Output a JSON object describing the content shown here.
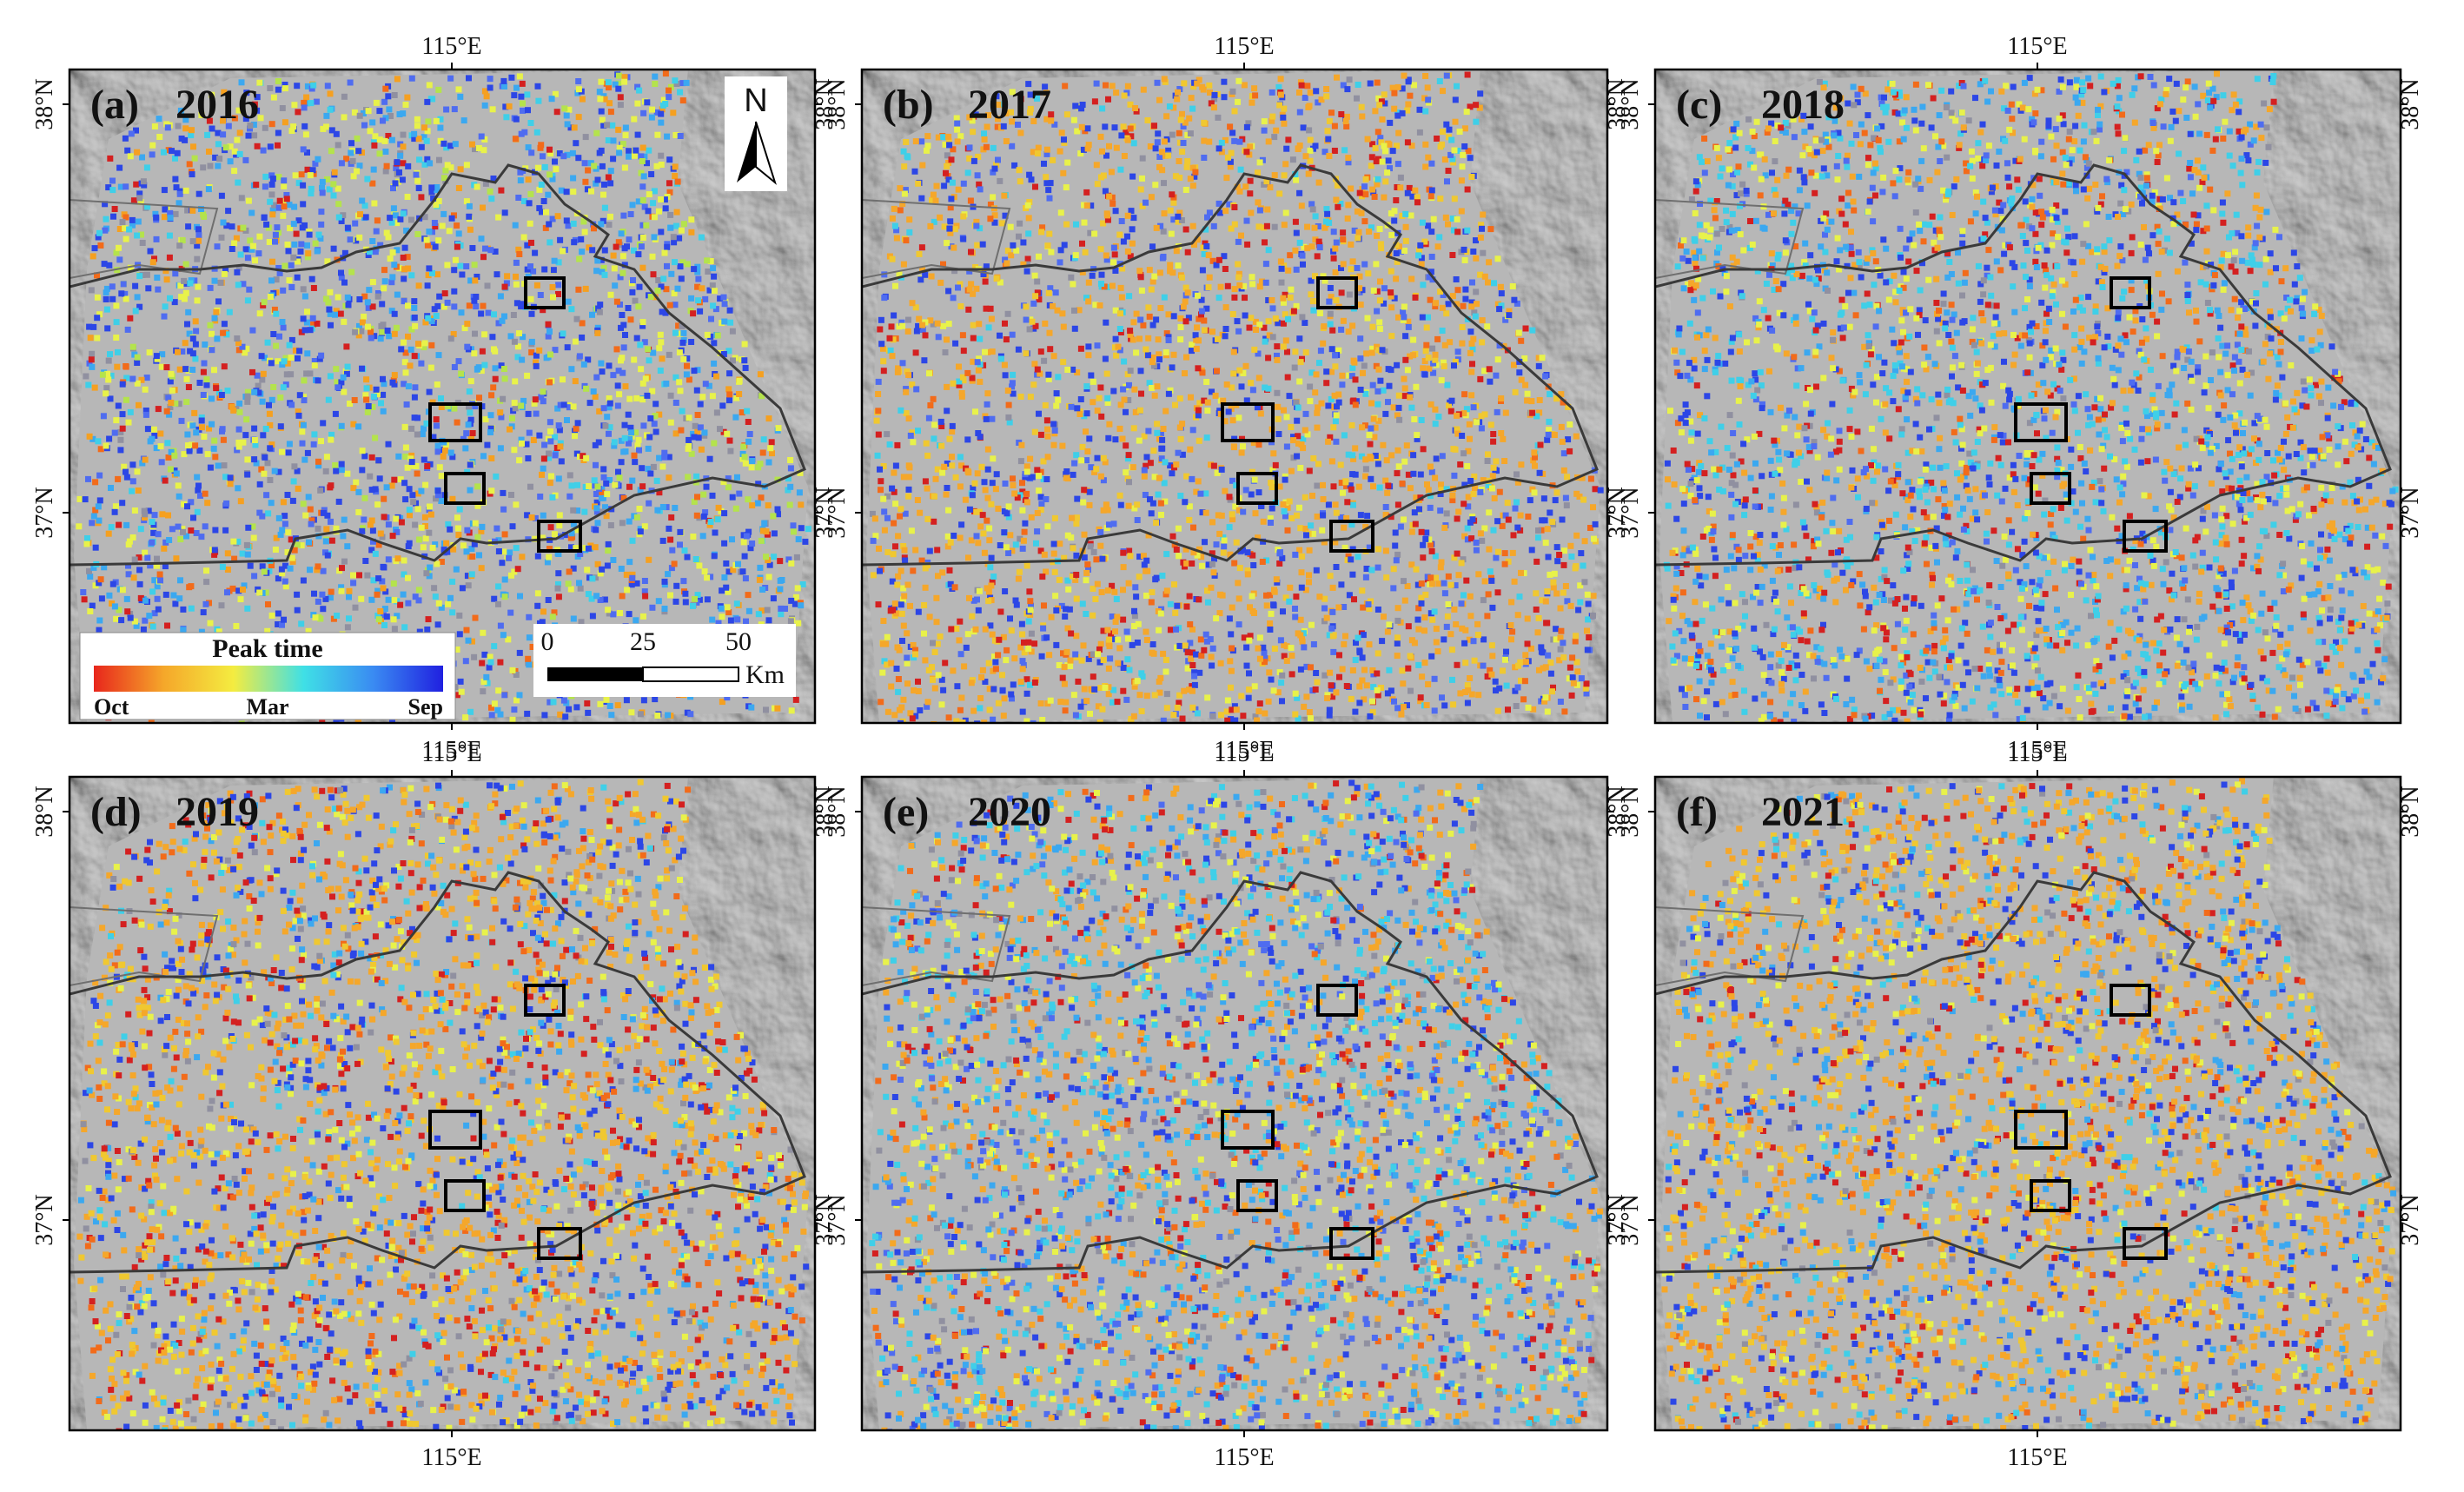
{
  "figure": {
    "panels": [
      {
        "label": "(a)",
        "year": "2016",
        "palette": [
          [
            "#e8f24a",
            0.16
          ],
          [
            "#b4e34c",
            0.05
          ],
          [
            "#3ba8f0",
            0.14
          ],
          [
            "#2c46e6",
            0.22
          ],
          [
            "#4f6cf0",
            0.12
          ],
          [
            "#3fcfe8",
            0.08
          ],
          [
            "#f5a020",
            0.08
          ],
          [
            "#f26b1a",
            0.05
          ],
          [
            "#d42020",
            0.04
          ],
          [
            "#9090a0",
            0.06
          ]
        ]
      },
      {
        "label": "(b)",
        "year": "2017",
        "palette": [
          [
            "#f5a72a",
            0.3
          ],
          [
            "#f0c830",
            0.14
          ],
          [
            "#e8f24a",
            0.08
          ],
          [
            "#2c46e6",
            0.16
          ],
          [
            "#4f6cf0",
            0.1
          ],
          [
            "#3fcfe8",
            0.06
          ],
          [
            "#d42020",
            0.08
          ],
          [
            "#f26b1a",
            0.04
          ],
          [
            "#9090a0",
            0.04
          ]
        ]
      },
      {
        "label": "(c)",
        "year": "2018",
        "palette": [
          [
            "#3fcfe8",
            0.18
          ],
          [
            "#3ba8f0",
            0.14
          ],
          [
            "#e8f24a",
            0.14
          ],
          [
            "#f5a72a",
            0.14
          ],
          [
            "#2c46e6",
            0.14
          ],
          [
            "#4f6cf0",
            0.08
          ],
          [
            "#d42020",
            0.08
          ],
          [
            "#f26b1a",
            0.06
          ],
          [
            "#9090a0",
            0.04
          ]
        ]
      },
      {
        "label": "(d)",
        "year": "2019",
        "palette": [
          [
            "#f5a72a",
            0.26
          ],
          [
            "#f0c830",
            0.18
          ],
          [
            "#e8f24a",
            0.1
          ],
          [
            "#2c46e6",
            0.14
          ],
          [
            "#d42020",
            0.1
          ],
          [
            "#f26b1a",
            0.08
          ],
          [
            "#3ba8f0",
            0.06
          ],
          [
            "#3fcfe8",
            0.04
          ],
          [
            "#9090a0",
            0.04
          ]
        ]
      },
      {
        "label": "(e)",
        "year": "2020",
        "palette": [
          [
            "#3fcfe8",
            0.2
          ],
          [
            "#3ba8f0",
            0.14
          ],
          [
            "#e8f24a",
            0.12
          ],
          [
            "#f5a72a",
            0.16
          ],
          [
            "#2c46e6",
            0.12
          ],
          [
            "#4f6cf0",
            0.08
          ],
          [
            "#d42020",
            0.06
          ],
          [
            "#f26b1a",
            0.06
          ],
          [
            "#9090a0",
            0.06
          ]
        ]
      },
      {
        "label": "(f)",
        "year": "2021",
        "palette": [
          [
            "#f5a72a",
            0.3
          ],
          [
            "#f0c830",
            0.18
          ],
          [
            "#e8f24a",
            0.08
          ],
          [
            "#2c46e6",
            0.14
          ],
          [
            "#3ba8f0",
            0.1
          ],
          [
            "#3fcfe8",
            0.06
          ],
          [
            "#d42020",
            0.06
          ],
          [
            "#f26b1a",
            0.04
          ],
          [
            "#9090a0",
            0.04
          ]
        ]
      }
    ],
    "axes": {
      "lon_label": "115°E",
      "lat_labels": [
        "38°N",
        "37°N"
      ]
    },
    "legend": {
      "title": "Peak time",
      "ticks": [
        "Oct",
        "Mar",
        "Sep"
      ],
      "gradient": [
        "#e8261c",
        "#f5a72a",
        "#f4ec40",
        "#3fe0e6",
        "#3a8bf2",
        "#2020e0"
      ]
    },
    "scalebar": {
      "ticks": [
        "0",
        "25",
        "50"
      ],
      "unit": "Km"
    },
    "north_arrow": {
      "letter": "N"
    },
    "colors": {
      "hillshade": "#a9a9a9",
      "boundary": "#3a3a3a",
      "highlight_box": "#000000",
      "frame": "#000000"
    }
  }
}
